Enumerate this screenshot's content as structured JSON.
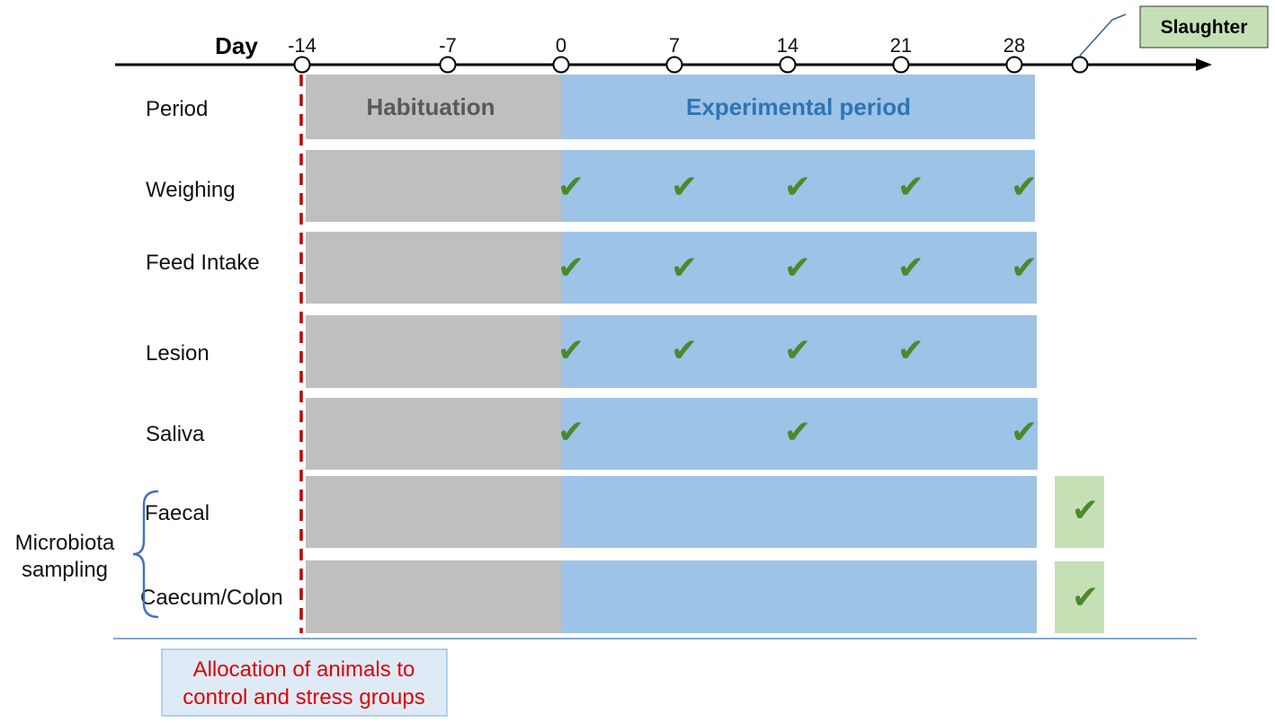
{
  "axis": {
    "label": "Day",
    "ticks": [
      "-14",
      "-7",
      "0",
      "7",
      "14",
      "21",
      "28"
    ],
    "tick_days": [
      -14,
      -7,
      0,
      7,
      14,
      21,
      28
    ],
    "slaughter_label": "Slaughter"
  },
  "periods": {
    "habituation": "Habituation",
    "experimental": "Experimental period"
  },
  "rows": [
    {
      "label": "Period"
    },
    {
      "label": "Weighing",
      "check_days": [
        0,
        7,
        14,
        21,
        28
      ]
    },
    {
      "label": "Feed Intake",
      "check_days": [
        0,
        7,
        14,
        21,
        28
      ]
    },
    {
      "label": "Lesion",
      "check_days": [
        0,
        7,
        14,
        21
      ]
    },
    {
      "label": "Saliva",
      "check_days": [
        0,
        14,
        28
      ]
    },
    {
      "label": "Faecal",
      "slaughter_check": true
    },
    {
      "label": "Caecum/Colon",
      "slaughter_check": true
    }
  ],
  "microbiota": {
    "line1": "Microbiota",
    "line2": "sampling"
  },
  "allocation": {
    "line1": "Allocation of animals to",
    "line2": "control and stress groups"
  },
  "check_glyph": "✔",
  "colors": {
    "habituation": "#bfbfbf",
    "experimental": "#9dc3e6",
    "slaughter_box": "#c5e0b4",
    "check": "#4a8a2c",
    "habituation_text": "#595959",
    "experimental_text": "#2e75b6",
    "dashed_line": "#c00000",
    "allocation_text": "#e00000",
    "allocation_box": "#deebf7",
    "allocation_border": "#9dc3e6",
    "brace": "#4472c4"
  }
}
